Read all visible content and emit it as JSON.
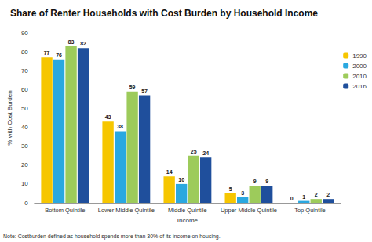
{
  "chart_data": {
    "type": "bar",
    "title": "Share of Renter Households with Cost Burden by Household Income",
    "x_label": "Income",
    "y_label": "% with Cost Burden",
    "note": "Note: Costburden defined as household spends more than 30% of its income on housing.",
    "categories": [
      "Bottom Quintile",
      "Lower Middle Quintile",
      "Middle Quintile",
      "Upper Middle Quintile",
      "Top Quintile"
    ],
    "series": [
      {
        "name": "1990",
        "color": "#f6c600",
        "values": [
          77,
          43,
          14,
          5,
          0
        ]
      },
      {
        "name": "2000",
        "color": "#2aa8e0",
        "values": [
          76,
          38,
          10,
          3,
          1
        ]
      },
      {
        "name": "2010",
        "color": "#9dcb5b",
        "values": [
          83,
          59,
          25,
          9,
          2
        ]
      },
      {
        "name": "2016",
        "color": "#1f4f9c",
        "values": [
          82,
          57,
          24,
          9,
          2
        ]
      }
    ],
    "ylim": [
      0,
      90
    ],
    "yticks": [
      0,
      10,
      20,
      30,
      40,
      50,
      60,
      70,
      80,
      90
    ],
    "grid": false,
    "legend": "top-right",
    "data_labels": true
  }
}
